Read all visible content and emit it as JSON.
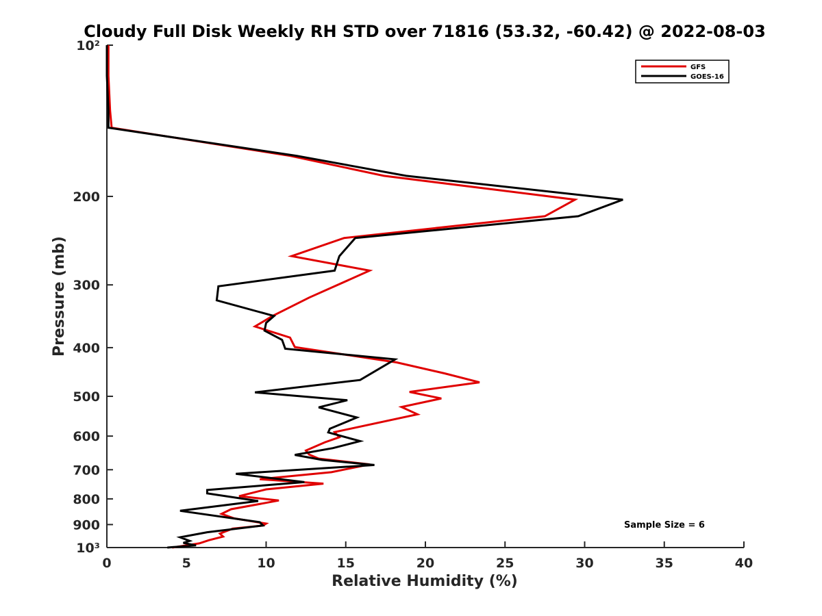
{
  "chart_data": {
    "type": "line",
    "title": "Cloudy Full Disk Weekly RH STD over 71816 (53.32, -60.42) @ 2022-08-03",
    "xlabel": "Relative Humidity (%)",
    "ylabel": "Pressure (mb)",
    "xlim": [
      0,
      40
    ],
    "ylim": [
      100,
      1000
    ],
    "y_scale": "log",
    "y_reversed": true,
    "x_ticks": [
      0,
      5,
      10,
      15,
      20,
      25,
      30,
      35,
      40
    ],
    "x_tick_labels": [
      "0",
      "5",
      "10",
      "15",
      "20",
      "25",
      "30",
      "35",
      "40"
    ],
    "y_ticks": [
      100,
      200,
      300,
      400,
      500,
      600,
      700,
      800,
      900,
      1000
    ],
    "y_tick_labels": [
      "10²",
      "200",
      "300",
      "400",
      "500",
      "600",
      "700",
      "800",
      "900",
      "10³"
    ],
    "grid": false,
    "legend_position": "top-right",
    "annotation": "Sample Size = 6",
    "series": [
      {
        "name": "GFS",
        "color": "#e00000",
        "points": [
          [
            0.1,
            100
          ],
          [
            0.1,
            115
          ],
          [
            0.2,
            135
          ],
          [
            0.3,
            146
          ],
          [
            11.5,
            166
          ],
          [
            17.4,
            182
          ],
          [
            29.4,
            203
          ],
          [
            27.5,
            219
          ],
          [
            14.9,
            242
          ],
          [
            11.6,
            263
          ],
          [
            16.5,
            281
          ],
          [
            12.7,
            318
          ],
          [
            10.4,
            346
          ],
          [
            9.3,
            363
          ],
          [
            11.5,
            382
          ],
          [
            11.8,
            399
          ],
          [
            18.2,
            428
          ],
          [
            21.2,
            450
          ],
          [
            23.4,
            469
          ],
          [
            19.0,
            490
          ],
          [
            21.0,
            505
          ],
          [
            18.5,
            525
          ],
          [
            19.5,
            543
          ],
          [
            14.3,
            589
          ],
          [
            14.6,
            603
          ],
          [
            13.7,
            617
          ],
          [
            12.5,
            641
          ],
          [
            12.7,
            653
          ],
          [
            13.3,
            665
          ],
          [
            16.5,
            683
          ],
          [
            14.1,
            708
          ],
          [
            9.6,
            731
          ],
          [
            13.6,
            746
          ],
          [
            10.0,
            766
          ],
          [
            8.3,
            790
          ],
          [
            10.8,
            806
          ],
          [
            7.8,
            839
          ],
          [
            7.2,
            857
          ],
          [
            8.0,
            875
          ],
          [
            10.0,
            896
          ],
          [
            9.8,
            904
          ],
          [
            7.9,
            917
          ],
          [
            7.1,
            938
          ],
          [
            7.3,
            951
          ],
          [
            6.4,
            967
          ],
          [
            5.8,
            981
          ],
          [
            4.1,
            1000
          ]
        ]
      },
      {
        "name": "GOES-16",
        "color": "#000000",
        "points": [
          [
            0.0,
            100
          ],
          [
            0.0,
            115
          ],
          [
            0.1,
            135
          ],
          [
            0.1,
            146
          ],
          [
            11.9,
            166
          ],
          [
            18.8,
            182
          ],
          [
            32.4,
            203
          ],
          [
            29.6,
            219
          ],
          [
            15.6,
            242
          ],
          [
            14.6,
            263
          ],
          [
            14.3,
            281
          ],
          [
            7.0,
            302
          ],
          [
            6.9,
            322
          ],
          [
            10.5,
            346
          ],
          [
            10.0,
            357
          ],
          [
            9.9,
            370
          ],
          [
            11.0,
            386
          ],
          [
            11.2,
            402
          ],
          [
            18.1,
            422
          ],
          [
            15.9,
            464
          ],
          [
            9.3,
            491
          ],
          [
            15.1,
            509
          ],
          [
            13.3,
            526
          ],
          [
            15.7,
            551
          ],
          [
            14.0,
            580
          ],
          [
            13.9,
            590
          ],
          [
            15.9,
            614
          ],
          [
            14.2,
            634
          ],
          [
            11.8,
            654
          ],
          [
            13.5,
            669
          ],
          [
            16.8,
            685
          ],
          [
            8.1,
            713
          ],
          [
            12.4,
            741
          ],
          [
            6.3,
            768
          ],
          [
            6.3,
            780
          ],
          [
            9.5,
            808
          ],
          [
            4.6,
            845
          ],
          [
            9.6,
            890
          ],
          [
            9.8,
            904
          ],
          [
            6.3,
            932
          ],
          [
            4.6,
            954
          ],
          [
            5.2,
            970
          ],
          [
            4.8,
            979
          ],
          [
            5.6,
            990
          ],
          [
            3.8,
            1000
          ]
        ]
      }
    ]
  }
}
